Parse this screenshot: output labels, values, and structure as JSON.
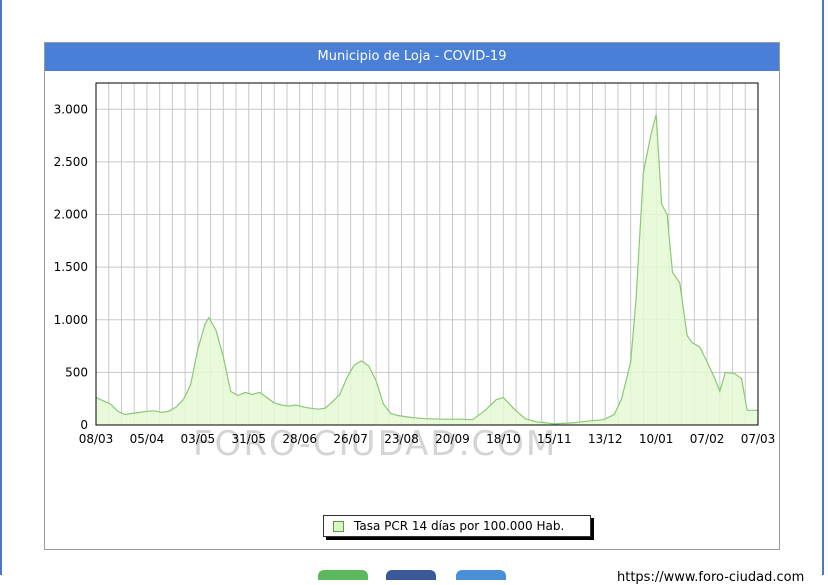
{
  "page": {
    "accent_color": "#4a7fd8",
    "url": "https://www.foro-ciudad.com",
    "bottom_buttons": [
      {
        "name": "green",
        "color": "#5cb85c"
      },
      {
        "name": "blue",
        "color": "#3b5998"
      },
      {
        "name": "light-blue",
        "color": "#4a90d9"
      }
    ]
  },
  "chart_data": {
    "type": "area",
    "title": "Municipio de Loja - COVID-19",
    "watermark": "FORO-CIUDAD.COM",
    "legend": "Tasa PCR 14 días por 100.000 Hab.",
    "legend_position": "bottom-center",
    "grid": true,
    "fill_color": "#e4f9d2",
    "line_color": "#8ac878",
    "x_domain": [
      "2020-03-08",
      "2021-03-07"
    ],
    "x_ticks": [
      {
        "date": "2020-03-08",
        "label": "08/03"
      },
      {
        "date": "2020-04-05",
        "label": "05/04"
      },
      {
        "date": "2020-05-03",
        "label": "03/05"
      },
      {
        "date": "2020-05-31",
        "label": "31/05"
      },
      {
        "date": "2020-06-28",
        "label": "28/06"
      },
      {
        "date": "2020-07-26",
        "label": "26/07"
      },
      {
        "date": "2020-08-23",
        "label": "23/08"
      },
      {
        "date": "2020-09-20",
        "label": "20/09"
      },
      {
        "date": "2020-10-18",
        "label": "18/10"
      },
      {
        "date": "2020-11-15",
        "label": "15/11"
      },
      {
        "date": "2020-12-13",
        "label": "13/12"
      },
      {
        "date": "2021-01-10",
        "label": "10/01"
      },
      {
        "date": "2021-02-07",
        "label": "07/02"
      },
      {
        "date": "2021-03-07",
        "label": "07/03"
      }
    ],
    "ylim": [
      0,
      3250
    ],
    "y_ticks": [
      {
        "value": 0,
        "label": "0"
      },
      {
        "value": 500,
        "label": "500"
      },
      {
        "value": 1000,
        "label": "1.000"
      },
      {
        "value": 1500,
        "label": "1.500"
      },
      {
        "value": 2000,
        "label": "2.000"
      },
      {
        "value": 2500,
        "label": "2.500"
      },
      {
        "value": 3000,
        "label": "3.000"
      }
    ],
    "series": [
      {
        "name": "Tasa PCR 14 días por 100.000 Hab.",
        "points": [
          [
            "2020-03-08",
            260
          ],
          [
            "2020-03-12",
            230
          ],
          [
            "2020-03-16",
            200
          ],
          [
            "2020-03-20",
            130
          ],
          [
            "2020-03-24",
            100
          ],
          [
            "2020-03-28",
            110
          ],
          [
            "2020-04-01",
            120
          ],
          [
            "2020-04-05",
            130
          ],
          [
            "2020-04-09",
            135
          ],
          [
            "2020-04-13",
            120
          ],
          [
            "2020-04-17",
            130
          ],
          [
            "2020-04-21",
            170
          ],
          [
            "2020-04-25",
            240
          ],
          [
            "2020-04-29",
            380
          ],
          [
            "2020-05-03",
            720
          ],
          [
            "2020-05-07",
            960
          ],
          [
            "2020-05-09",
            1020
          ],
          [
            "2020-05-13",
            900
          ],
          [
            "2020-05-17",
            650
          ],
          [
            "2020-05-21",
            320
          ],
          [
            "2020-05-25",
            280
          ],
          [
            "2020-05-29",
            310
          ],
          [
            "2020-06-02",
            290
          ],
          [
            "2020-06-06",
            310
          ],
          [
            "2020-06-10",
            260
          ],
          [
            "2020-06-14",
            210
          ],
          [
            "2020-06-18",
            190
          ],
          [
            "2020-06-22",
            180
          ],
          [
            "2020-06-26",
            190
          ],
          [
            "2020-06-30",
            170
          ],
          [
            "2020-07-04",
            160
          ],
          [
            "2020-07-08",
            150
          ],
          [
            "2020-07-12",
            160
          ],
          [
            "2020-07-16",
            220
          ],
          [
            "2020-07-20",
            290
          ],
          [
            "2020-07-24",
            450
          ],
          [
            "2020-07-28",
            570
          ],
          [
            "2020-08-01",
            610
          ],
          [
            "2020-08-05",
            560
          ],
          [
            "2020-08-09",
            420
          ],
          [
            "2020-08-13",
            200
          ],
          [
            "2020-08-17",
            110
          ],
          [
            "2020-08-21",
            90
          ],
          [
            "2020-08-25",
            80
          ],
          [
            "2020-08-29",
            70
          ],
          [
            "2020-09-05",
            60
          ],
          [
            "2020-09-15",
            55
          ],
          [
            "2020-09-25",
            55
          ],
          [
            "2020-10-01",
            50
          ],
          [
            "2020-10-08",
            140
          ],
          [
            "2020-10-14",
            240
          ],
          [
            "2020-10-18",
            260
          ],
          [
            "2020-10-24",
            150
          ],
          [
            "2020-10-30",
            60
          ],
          [
            "2020-11-05",
            30
          ],
          [
            "2020-11-11",
            20
          ],
          [
            "2020-11-15",
            10
          ],
          [
            "2020-11-25",
            20
          ],
          [
            "2020-12-05",
            40
          ],
          [
            "2020-12-12",
            50
          ],
          [
            "2020-12-18",
            100
          ],
          [
            "2020-12-22",
            250
          ],
          [
            "2020-12-27",
            600
          ],
          [
            "2020-12-30",
            1200
          ],
          [
            "2021-01-03",
            2400
          ],
          [
            "2021-01-07",
            2750
          ],
          [
            "2021-01-10",
            2950
          ],
          [
            "2021-01-13",
            2100
          ],
          [
            "2021-01-16",
            2000
          ],
          [
            "2021-01-19",
            1450
          ],
          [
            "2021-01-23",
            1350
          ],
          [
            "2021-01-27",
            850
          ],
          [
            "2021-01-30",
            780
          ],
          [
            "2021-02-03",
            740
          ],
          [
            "2021-02-07",
            600
          ],
          [
            "2021-02-11",
            450
          ],
          [
            "2021-02-14",
            320
          ],
          [
            "2021-02-17",
            500
          ],
          [
            "2021-02-22",
            490
          ],
          [
            "2021-02-26",
            440
          ],
          [
            "2021-03-01",
            140
          ],
          [
            "2021-03-07",
            140
          ]
        ]
      }
    ]
  }
}
